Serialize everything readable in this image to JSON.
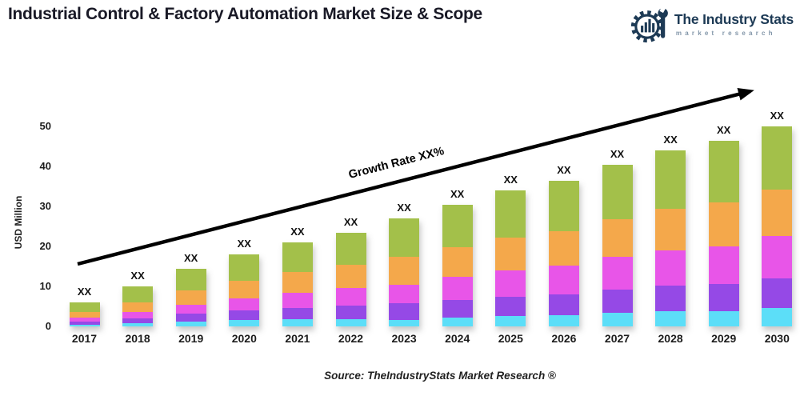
{
  "header": {
    "title": "Industrial Control & Factory Automation Market Size & Scope",
    "logo": {
      "name": "The Industry Stats",
      "tagline": "market research",
      "brand_color": "#1d3a55",
      "tagline_color": "#8195a8"
    }
  },
  "chart_data": {
    "type": "bar",
    "stacked": true,
    "title": "",
    "xlabel": "",
    "ylabel": "USD Million",
    "ylim": [
      0,
      50
    ],
    "yticks": [
      0,
      10,
      20,
      30,
      40,
      50
    ],
    "grid": false,
    "legend": "none",
    "bar_value_label": "XX",
    "categories": [
      "2017",
      "2018",
      "2019",
      "2020",
      "2021",
      "2022",
      "2023",
      "2024",
      "2025",
      "2026",
      "2027",
      "2028",
      "2029",
      "2030"
    ],
    "series": [
      {
        "name": "segment-1-cyan",
        "color": "#5cdef8",
        "values": [
          0.5,
          0.9,
          1.3,
          1.6,
          1.8,
          1.9,
          1.7,
          2.3,
          2.6,
          2.8,
          3.4,
          3.8,
          3.9,
          4.7
        ]
      },
      {
        "name": "segment-2-purple",
        "color": "#9549e6",
        "values": [
          0.7,
          1.2,
          1.9,
          2.5,
          2.9,
          3.3,
          4.2,
          4.4,
          4.9,
          5.3,
          5.9,
          6.4,
          6.8,
          7.4
        ]
      },
      {
        "name": "segment-3-magenta",
        "color": "#e855e8",
        "values": [
          1.0,
          1.6,
          2.2,
          3.0,
          3.8,
          4.5,
          4.6,
          5.8,
          6.6,
          7.1,
          8.1,
          8.8,
          9.3,
          10.6
        ]
      },
      {
        "name": "segment-4-orange",
        "color": "#f4a84b",
        "values": [
          1.4,
          2.3,
          3.6,
          4.4,
          5.1,
          5.7,
          6.9,
          7.3,
          8.1,
          8.7,
          9.5,
          10.4,
          11.0,
          11.6
        ]
      },
      {
        "name": "segment-5-green",
        "color": "#a3c04a",
        "values": [
          2.4,
          4.0,
          5.5,
          6.5,
          7.4,
          8.1,
          9.6,
          10.7,
          11.8,
          12.6,
          13.6,
          14.6,
          15.5,
          15.7
        ]
      }
    ],
    "totals": [
      6.0,
      10.0,
      14.5,
      18.0,
      21.0,
      23.5,
      27.0,
      30.5,
      34.0,
      36.5,
      40.5,
      44.0,
      46.5,
      50.0
    ],
    "annotations": {
      "growth_label": "Growth Rate XX%",
      "arrow_direction": "up-right",
      "arrow_color": "#000000"
    }
  },
  "footer": {
    "source": "Source: TheIndustryStats Market Research ®"
  }
}
